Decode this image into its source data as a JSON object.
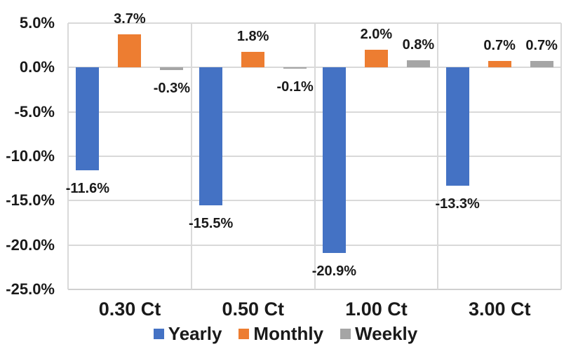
{
  "chart": {
    "background": "#ffffff",
    "text_color": "#1a1a1a",
    "gridline_color": "#d9d9d9",
    "axis_line_color": "#d0d0d0"
  },
  "chart_data": {
    "type": "bar",
    "title": "",
    "xlabel": "",
    "ylabel": "",
    "categories": [
      "0.30 Ct",
      "0.50 Ct",
      "1.00 Ct",
      "3.00 Ct"
    ],
    "series": [
      {
        "name": "Yearly",
        "color": "#4472C4",
        "values": [
          -11.6,
          -15.5,
          -20.9,
          -13.3
        ],
        "labels": [
          "-11.6%",
          "-15.5%",
          "-20.9%",
          "-13.3%"
        ]
      },
      {
        "name": "Monthly",
        "color": "#ED7D31",
        "values": [
          3.7,
          1.8,
          2.0,
          0.7
        ],
        "labels": [
          "3.7%",
          "1.8%",
          "2.0%",
          "0.7%"
        ]
      },
      {
        "name": "Weekly",
        "color": "#A5A5A5",
        "values": [
          -0.3,
          -0.1,
          0.8,
          0.7
        ],
        "labels": [
          "-0.3%",
          "-0.1%",
          "0.8%",
          "0.7%"
        ]
      }
    ],
    "ylim": [
      -25,
      5
    ],
    "ytick_step": 5,
    "ytick_labels": [
      "5.0%",
      "0.0%",
      "-5.0%",
      "-10.0%",
      "-15.0%",
      "-20.0%",
      "-25.0%"
    ],
    "grid": true,
    "legend_position": "bottom"
  }
}
